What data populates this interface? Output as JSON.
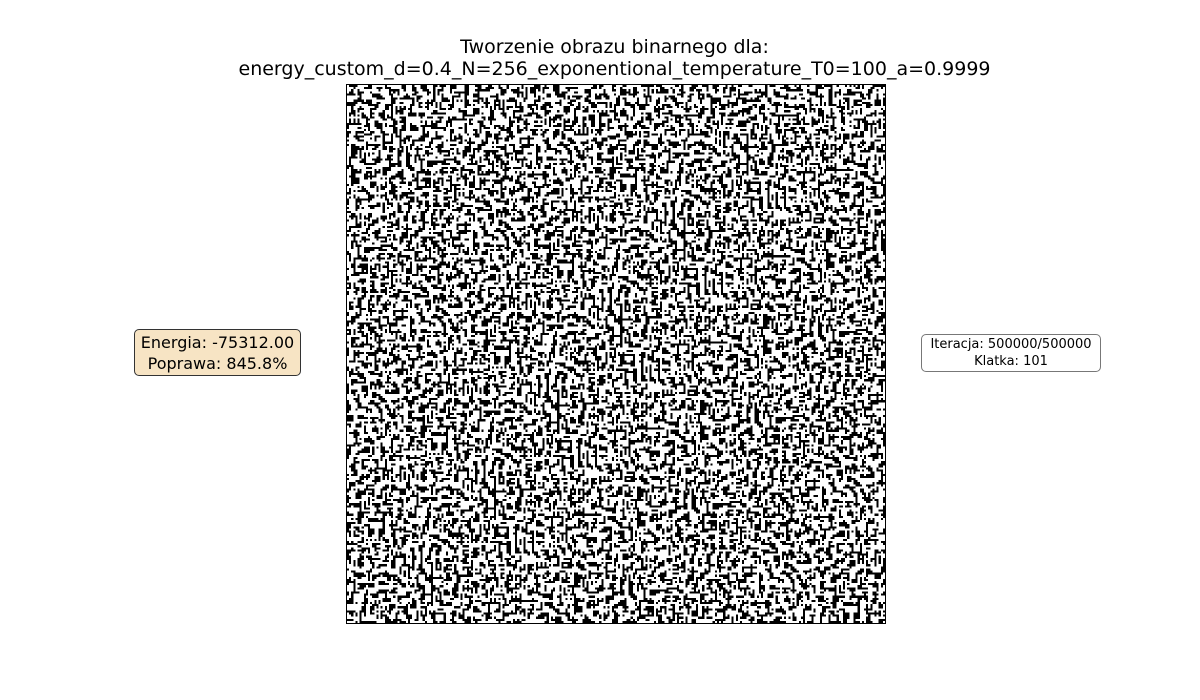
{
  "title": {
    "line1": "Tworzenie obrazu binarnego dla:",
    "line2": "energy_custom_d=0.4_N=256_exponentional_temperature_T0=100_a=0.9999"
  },
  "energy_box": {
    "energy_text": "Energia: -75312.00",
    "improvement_text": "Poprawa: 845.8%",
    "background_color": "#f7e4c4"
  },
  "iteration_box": {
    "iteration_text": "Iteracja: 500000/500000",
    "frame_text": "Klatka: 101"
  },
  "image": {
    "grid_size": 256,
    "density": 0.4,
    "foreground_color": "#000000",
    "background_color": "#ffffff"
  }
}
